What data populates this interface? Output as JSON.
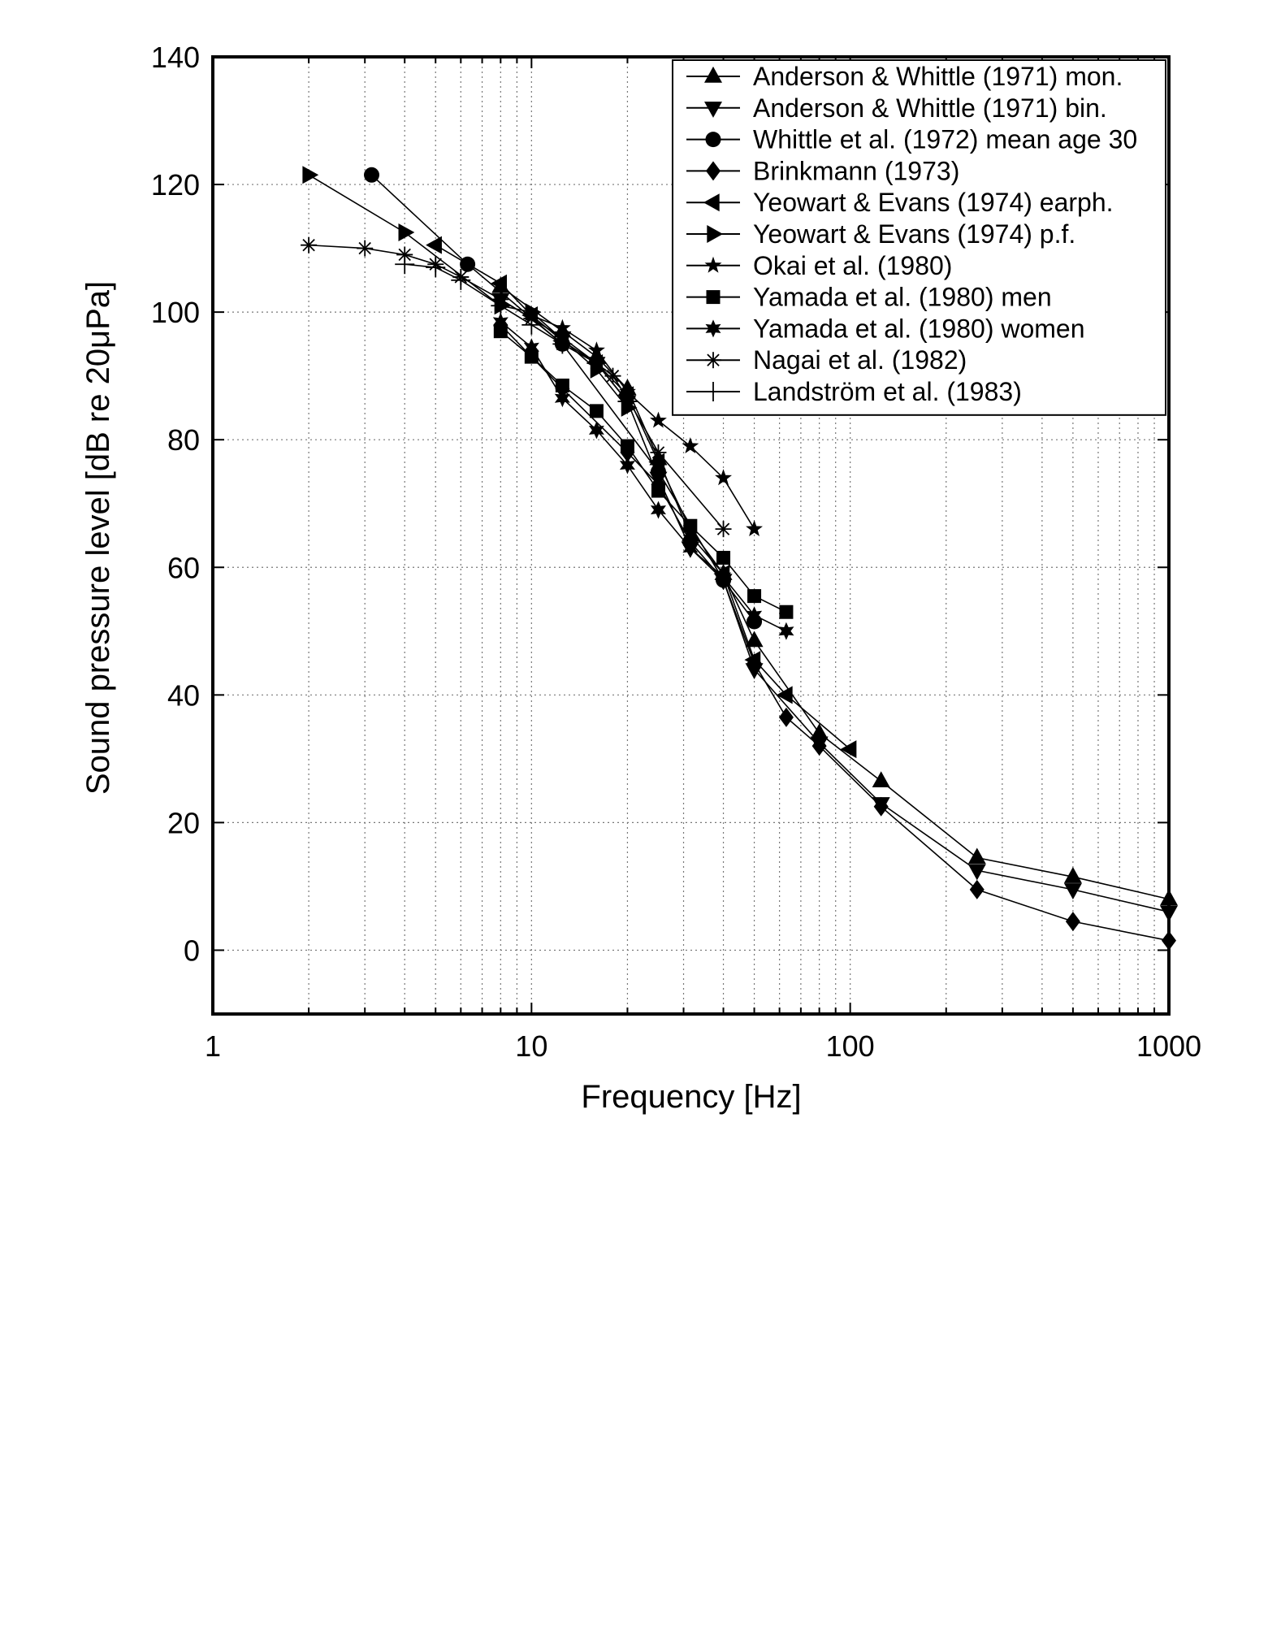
{
  "chart_data": {
    "type": "line",
    "xlabel": "Frequency [Hz]",
    "ylabel": "Sound pressure level [dB re 20μPa]",
    "xscale": "log",
    "xlim": [
      1,
      1000
    ],
    "ylim": [
      -10,
      140
    ],
    "x_ticks": [
      "1",
      "10",
      "100",
      "1000"
    ],
    "y_ticks": [
      "0",
      "20",
      "40",
      "60",
      "80",
      "100",
      "120",
      "140"
    ],
    "grid": true,
    "legend_position": "top-right",
    "series": [
      {
        "name": "Anderson & Whittle (1971) mon.",
        "marker": "triangle-up",
        "x": [
          8,
          12.5,
          16,
          20,
          25,
          31.5,
          40,
          50,
          80,
          125,
          250,
          500,
          1000
        ],
        "y": [
          104,
          97,
          93,
          88,
          77,
          65,
          59,
          48.5,
          34,
          26.5,
          14.5,
          11.5,
          8
        ]
      },
      {
        "name": "Anderson & Whittle (1971) bin.",
        "marker": "triangle-down",
        "x": [
          8,
          12.5,
          16,
          20,
          25,
          31.5,
          40,
          50,
          80,
          125,
          250,
          500,
          1000
        ],
        "y": [
          102,
          96,
          92,
          86,
          74,
          63,
          58,
          44,
          32.5,
          23,
          12.5,
          9.5,
          6
        ]
      },
      {
        "name": "Whittle et al. (1972) mean age 30",
        "marker": "circle",
        "x": [
          3.15,
          6.3,
          12.5,
          25,
          40,
          50
        ],
        "y": [
          121.5,
          107.5,
          95,
          75,
          58,
          51.5
        ]
      },
      {
        "name": "Brinkmann (1973)",
        "marker": "diamond",
        "x": [
          8,
          12.5,
          20,
          25,
          31.5,
          40,
          50,
          63,
          80,
          125,
          250,
          500,
          1000
        ],
        "y": [
          98,
          88,
          78,
          73,
          64,
          58,
          45,
          36.5,
          32,
          22.5,
          9.5,
          4.5,
          1.5
        ]
      },
      {
        "name": "Yeowart & Evans (1974) earph.",
        "marker": "triangle-left",
        "x": [
          5,
          8,
          10,
          12.5,
          16,
          20,
          25,
          31.5,
          40,
          50,
          63,
          100
        ],
        "y": [
          110.5,
          104.5,
          99.5,
          95.5,
          92,
          87,
          76.5,
          66,
          59,
          45.5,
          40,
          31.5
        ]
      },
      {
        "name": "Yeowart & Evans (1974) p.f.",
        "marker": "triangle-right",
        "x": [
          2,
          4,
          8,
          10,
          16,
          20
        ],
        "y": [
          121.5,
          112.5,
          101,
          100,
          91,
          85
        ]
      },
      {
        "name": "Okai et al. (1980)",
        "marker": "star5",
        "x": [
          10,
          12.5,
          16,
          20,
          25,
          31.5,
          40,
          50
        ],
        "y": [
          99.5,
          97.5,
          94,
          87.5,
          83,
          79,
          74,
          66
        ]
      },
      {
        "name": "Yamada et al. (1980) men",
        "marker": "square",
        "x": [
          8,
          10,
          12.5,
          16,
          20,
          25,
          31.5,
          40,
          50,
          63
        ],
        "y": [
          97,
          93,
          88.5,
          84.5,
          79,
          72,
          66.5,
          61.5,
          55.5,
          53
        ]
      },
      {
        "name": "Yamada et al. (1980) women",
        "marker": "star6",
        "x": [
          8,
          10,
          12.5,
          16,
          20,
          25,
          31.5,
          40,
          50,
          63
        ],
        "y": [
          98.5,
          94.5,
          86.5,
          81.5,
          76,
          69,
          63,
          58.5,
          52.5,
          50
        ]
      },
      {
        "name": "Nagai et al. (1982)",
        "marker": "asterisk",
        "x": [
          2,
          3,
          4,
          5,
          6,
          8,
          10,
          12.5,
          16,
          18,
          20,
          25,
          40
        ],
        "y": [
          110.5,
          110,
          109,
          107.5,
          105.5,
          102,
          99,
          95,
          92,
          90,
          86.5,
          78,
          66
        ]
      },
      {
        "name": "Landström et al. (1983)",
        "marker": "plus",
        "x": [
          4,
          5,
          6,
          8,
          10,
          12.5,
          16,
          20
        ],
        "y": [
          107.5,
          107,
          105,
          101,
          98,
          95,
          92,
          86
        ]
      }
    ]
  }
}
